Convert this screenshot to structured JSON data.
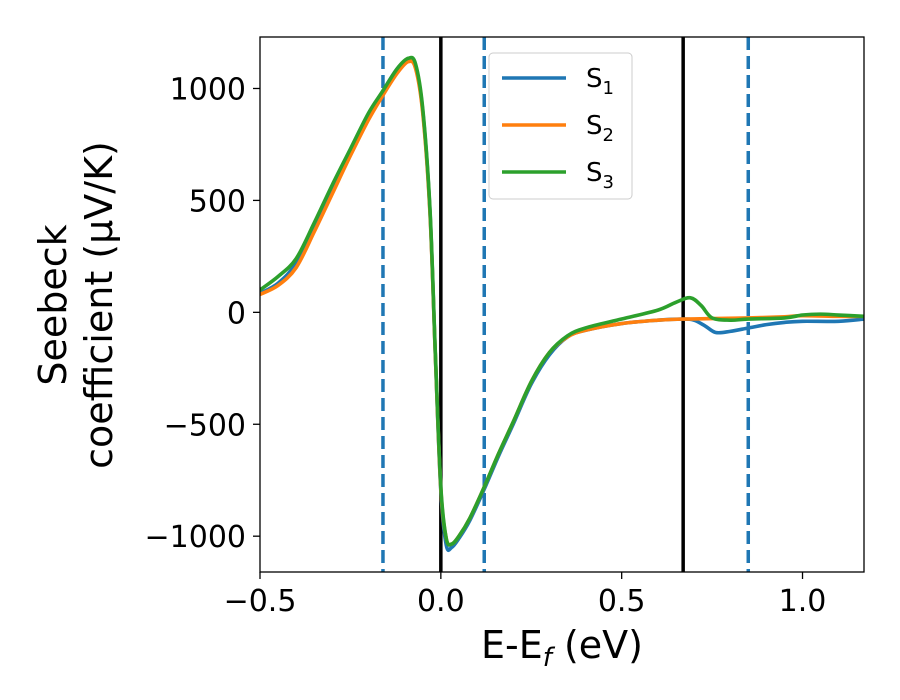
{
  "chart_data": {
    "type": "line",
    "xlabel": "E-E",
    "xlabel_sub": "f",
    "xlabel_unit": " (eV)",
    "ylabel_line1": "Seebeck",
    "ylabel_line2": "coefficient  (μV/K)",
    "xlim": [
      -0.5,
      1.17
    ],
    "ylim": [
      -1160,
      1230
    ],
    "x_ticks": [
      -0.5,
      0.0,
      0.5,
      1.0
    ],
    "x_tick_labels": [
      "−0.5",
      "0.0",
      "0.5",
      "1.0"
    ],
    "y_ticks": [
      -1000,
      -500,
      0,
      500,
      1000
    ],
    "y_tick_labels": [
      "−1000",
      "−500",
      "0",
      "500",
      "1000"
    ],
    "grid": false,
    "legend_position": "top-center",
    "vlines_solid": [
      0.0,
      0.67
    ],
    "vlines_dashed": [
      -0.16,
      0.12,
      0.85
    ],
    "series": [
      {
        "name": "S",
        "sub": "1",
        "color": "#1f77b4",
        "points": [
          [
            -0.5,
            85
          ],
          [
            -0.45,
            130
          ],
          [
            -0.4,
            220
          ],
          [
            -0.35,
            390
          ],
          [
            -0.3,
            560
          ],
          [
            -0.25,
            720
          ],
          [
            -0.2,
            880
          ],
          [
            -0.16,
            990
          ],
          [
            -0.12,
            1090
          ],
          [
            -0.09,
            1130
          ],
          [
            -0.07,
            1100
          ],
          [
            -0.05,
            900
          ],
          [
            -0.03,
            450
          ],
          [
            -0.015,
            -200
          ],
          [
            0.0,
            -800
          ],
          [
            0.015,
            -1040
          ],
          [
            0.03,
            -1050
          ],
          [
            0.05,
            -1010
          ],
          [
            0.08,
            -930
          ],
          [
            0.12,
            -790
          ],
          [
            0.16,
            -640
          ],
          [
            0.2,
            -500
          ],
          [
            0.25,
            -320
          ],
          [
            0.3,
            -190
          ],
          [
            0.35,
            -110
          ],
          [
            0.4,
            -80
          ],
          [
            0.5,
            -50
          ],
          [
            0.6,
            -35
          ],
          [
            0.67,
            -30
          ],
          [
            0.7,
            -35
          ],
          [
            0.73,
            -60
          ],
          [
            0.76,
            -90
          ],
          [
            0.8,
            -85
          ],
          [
            0.85,
            -70
          ],
          [
            0.9,
            -55
          ],
          [
            0.95,
            -45
          ],
          [
            1.0,
            -40
          ],
          [
            1.1,
            -40
          ],
          [
            1.17,
            -30
          ]
        ]
      },
      {
        "name": "S",
        "sub": "2",
        "color": "#ff7f0e",
        "points": [
          [
            -0.5,
            80
          ],
          [
            -0.45,
            120
          ],
          [
            -0.4,
            200
          ],
          [
            -0.35,
            360
          ],
          [
            -0.3,
            530
          ],
          [
            -0.25,
            700
          ],
          [
            -0.2,
            860
          ],
          [
            -0.16,
            970
          ],
          [
            -0.12,
            1070
          ],
          [
            -0.09,
            1120
          ],
          [
            -0.07,
            1090
          ],
          [
            -0.05,
            890
          ],
          [
            -0.03,
            440
          ],
          [
            -0.015,
            -200
          ],
          [
            0.0,
            -790
          ],
          [
            0.015,
            -1010
          ],
          [
            0.03,
            -1035
          ],
          [
            0.05,
            -1000
          ],
          [
            0.08,
            -920
          ],
          [
            0.12,
            -780
          ],
          [
            0.16,
            -630
          ],
          [
            0.2,
            -490
          ],
          [
            0.25,
            -310
          ],
          [
            0.3,
            -180
          ],
          [
            0.35,
            -110
          ],
          [
            0.4,
            -80
          ],
          [
            0.5,
            -50
          ],
          [
            0.6,
            -35
          ],
          [
            0.67,
            -30
          ],
          [
            0.75,
            -28
          ],
          [
            0.85,
            -25
          ],
          [
            0.95,
            -20
          ],
          [
            1.0,
            -15
          ],
          [
            1.1,
            -18
          ],
          [
            1.17,
            -18
          ]
        ]
      },
      {
        "name": "S",
        "sub": "3",
        "color": "#2ca02c",
        "points": [
          [
            -0.5,
            100
          ],
          [
            -0.45,
            160
          ],
          [
            -0.4,
            240
          ],
          [
            -0.35,
            400
          ],
          [
            -0.3,
            570
          ],
          [
            -0.25,
            730
          ],
          [
            -0.2,
            890
          ],
          [
            -0.16,
            990
          ],
          [
            -0.12,
            1090
          ],
          [
            -0.09,
            1135
          ],
          [
            -0.07,
            1110
          ],
          [
            -0.05,
            910
          ],
          [
            -0.03,
            460
          ],
          [
            -0.015,
            -190
          ],
          [
            0.0,
            -780
          ],
          [
            0.015,
            -1010
          ],
          [
            0.03,
            -1035
          ],
          [
            0.05,
            -1000
          ],
          [
            0.08,
            -920
          ],
          [
            0.12,
            -780
          ],
          [
            0.16,
            -630
          ],
          [
            0.2,
            -490
          ],
          [
            0.25,
            -310
          ],
          [
            0.3,
            -180
          ],
          [
            0.35,
            -105
          ],
          [
            0.4,
            -70
          ],
          [
            0.5,
            -30
          ],
          [
            0.6,
            10
          ],
          [
            0.65,
            45
          ],
          [
            0.69,
            65
          ],
          [
            0.72,
            30
          ],
          [
            0.75,
            -25
          ],
          [
            0.8,
            -35
          ],
          [
            0.85,
            -30
          ],
          [
            0.95,
            -25
          ],
          [
            1.0,
            -12
          ],
          [
            1.05,
            -8
          ],
          [
            1.1,
            -12
          ],
          [
            1.17,
            -18
          ]
        ]
      }
    ]
  }
}
